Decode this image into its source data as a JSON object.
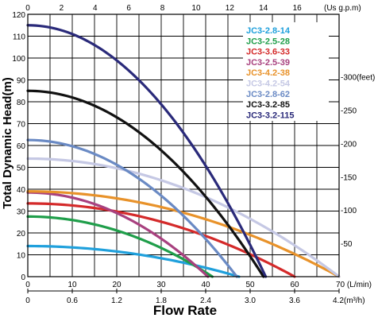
{
  "chart_data": {
    "type": "line",
    "xlabel": "Flow Rate",
    "ylabel": "Total Dynamic Head(m)",
    "xlim": [
      0,
      70
    ],
    "ylim": [
      0,
      120
    ],
    "x_ticks": [
      0,
      10,
      20,
      30,
      40,
      50,
      60,
      70
    ],
    "y_ticks": [
      0,
      10,
      20,
      30,
      40,
      50,
      60,
      70,
      80,
      90,
      100,
      110,
      120
    ],
    "x_unit_label": "(L/min)",
    "top_axis": {
      "unit_label": "(Us g.p.m)",
      "ticks": [
        "0",
        "2",
        "4",
        "6",
        "8",
        "10",
        "12",
        "14",
        "16"
      ]
    },
    "bottom_axis_2": {
      "unit_label": "4.2(m³/h)",
      "ticks": [
        "0",
        "0.6",
        "1.2",
        "1.8",
        "2.4",
        "3.0",
        "3.6"
      ]
    },
    "right_axis": {
      "unit": "feet",
      "labels": [
        "-50",
        "-100",
        "-150",
        "-200",
        "-250",
        "-300(feet)"
      ],
      "values": [
        50,
        100,
        150,
        200,
        250,
        300
      ]
    },
    "grid": true,
    "legend_position": "top-right",
    "series": [
      {
        "name": "JC3-2.8-14",
        "color": "#1fa0dc",
        "shutoff": 14,
        "max_flow": 47.5
      },
      {
        "name": "JC3-2.5-28",
        "color": "#1f9e4a",
        "shutoff": 27.5,
        "max_flow": 41.5
      },
      {
        "name": "JC3-3.6-33",
        "color": "#d42a2a",
        "shutoff": 33.5,
        "max_flow": 60
      },
      {
        "name": "JC3-2.5-39",
        "color": "#a8417f",
        "shutoff": 38.5,
        "max_flow": 40.5
      },
      {
        "name": "JC3-4.2-38",
        "color": "#e8922a",
        "shutoff": 39,
        "max_flow": 70
      },
      {
        "name": "JC3-4.2-54",
        "color": "#c5c8e4",
        "shutoff": 54,
        "max_flow": 70
      },
      {
        "name": "JC3-2.8-62",
        "color": "#6a8ac4",
        "shutoff": 62.5,
        "max_flow": 47
      },
      {
        "name": "JC3-3.2-85",
        "color": "#111111",
        "shutoff": 85,
        "max_flow": 53
      },
      {
        "name": "JC3-3.2-115",
        "color": "#2a2a7a",
        "shutoff": 115,
        "max_flow": 53.5
      }
    ]
  }
}
